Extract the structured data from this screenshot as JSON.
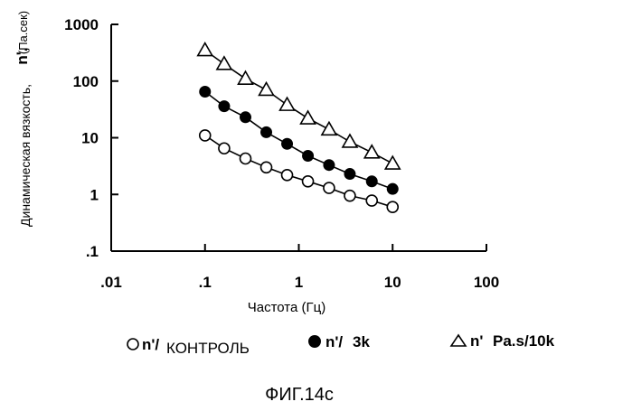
{
  "chart_data": {
    "type": "scatter",
    "xscale": "log",
    "yscale": "log",
    "xlim": [
      0.01,
      100
    ],
    "ylim": [
      0.1,
      1000
    ],
    "xticks": [
      ".01",
      ".1",
      "1",
      "10",
      "100"
    ],
    "yticks": [
      ".1",
      "1",
      "10",
      "100",
      "1000"
    ],
    "xlabel": "Частота (Гц)",
    "ylabel": "Динамическая вязкость,",
    "ylabel_symbol": "n',",
    "ylabel_unit": "(Па.сек)",
    "series": [
      {
        "legend_symbol": "n'/",
        "legend_text": "КОНТРОЛЬ",
        "marker": "open-circle",
        "x": [
          0.1,
          0.16,
          0.27,
          0.45,
          0.75,
          1.25,
          2.1,
          3.5,
          6,
          10
        ],
        "y": [
          11,
          6.5,
          4.3,
          3,
          2.2,
          1.7,
          1.3,
          0.95,
          0.78,
          0.6
        ]
      },
      {
        "legend_symbol": "n'/",
        "legend_text": "3k",
        "marker": "filled-circle",
        "x": [
          0.1,
          0.16,
          0.27,
          0.45,
          0.75,
          1.25,
          2.1,
          3.5,
          6,
          10
        ],
        "y": [
          65,
          36,
          23,
          12.5,
          7.8,
          4.8,
          3.3,
          2.3,
          1.7,
          1.25
        ]
      },
      {
        "legend_symbol": "n'",
        "legend_text": "Pa.s/10k",
        "marker": "open-triangle",
        "x": [
          0.1,
          0.16,
          0.27,
          0.45,
          0.75,
          1.25,
          2.1,
          3.5,
          6,
          10
        ],
        "y": [
          350,
          200,
          110,
          70,
          38,
          22,
          14,
          8.5,
          5.5,
          3.5
        ]
      }
    ]
  },
  "caption": "ФИГ.14c"
}
